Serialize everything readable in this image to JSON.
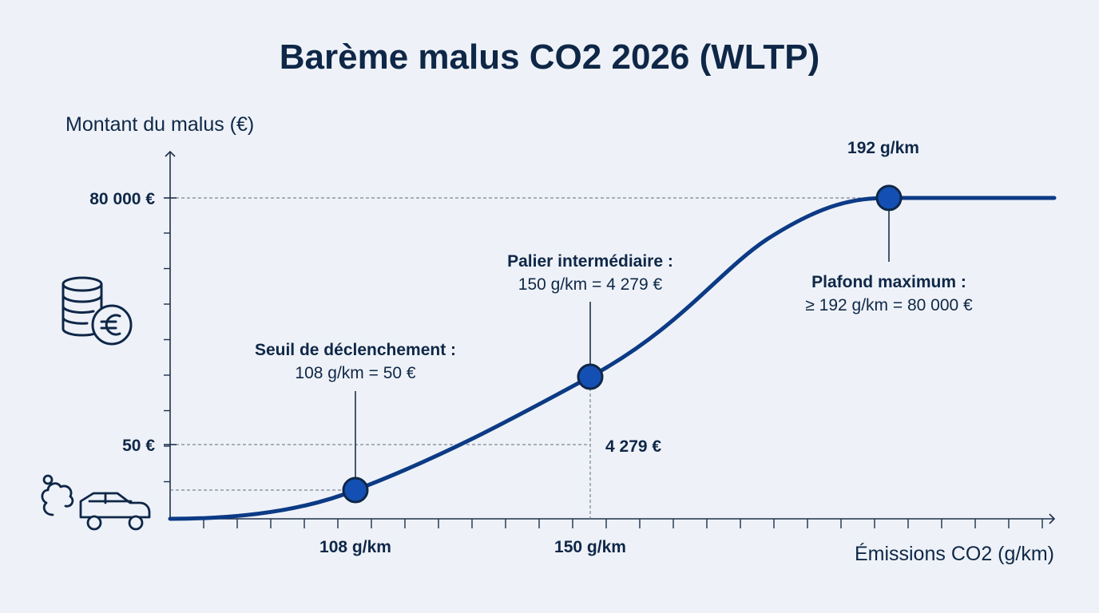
{
  "colors": {
    "curve": "#0c3a85",
    "point": "#1450b4",
    "point_stroke": "#0f2747",
    "text": "#0f2747",
    "axis": "#1e2f4a",
    "guide": "#5d6a7e",
    "background": "#eef2f8"
  },
  "icons": {
    "y_axis": "coins-euro-icon",
    "x_axis": "car-exhaust-icon"
  },
  "chart_data": {
    "type": "line",
    "title": "Barème malus CO2 2026 (WLTP)",
    "xlabel": "Émissions CO2 (g/km)",
    "ylabel": "Montant du malus (€)",
    "x_tick_labels": [
      {
        "x": 108,
        "label": "108 g/km"
      },
      {
        "x": 150,
        "label": "150 g/km"
      }
    ],
    "y_tick_labels": [
      {
        "y": 50,
        "label": "50 €"
      },
      {
        "y": 80000,
        "label": "80 000 €"
      }
    ],
    "key_points": [
      {
        "x": 108,
        "y": 50,
        "name": "seuil",
        "title": "Seuil de déclenchement :",
        "text": "108 g/km = 50 €"
      },
      {
        "x": 150,
        "y": 4279,
        "name": "palier",
        "title": "Palier intermédiaire :",
        "text": "150 g/km = 4 279 €",
        "value_label": "4 279 €"
      },
      {
        "x": 192,
        "y": 80000,
        "name": "plafond",
        "title": "Plafond maximum :",
        "text": "≥ 192 g/km = 80 000 €",
        "top_label": "192 g/km"
      }
    ],
    "axis_scale": "schematic (not to scale)",
    "grid": false
  }
}
